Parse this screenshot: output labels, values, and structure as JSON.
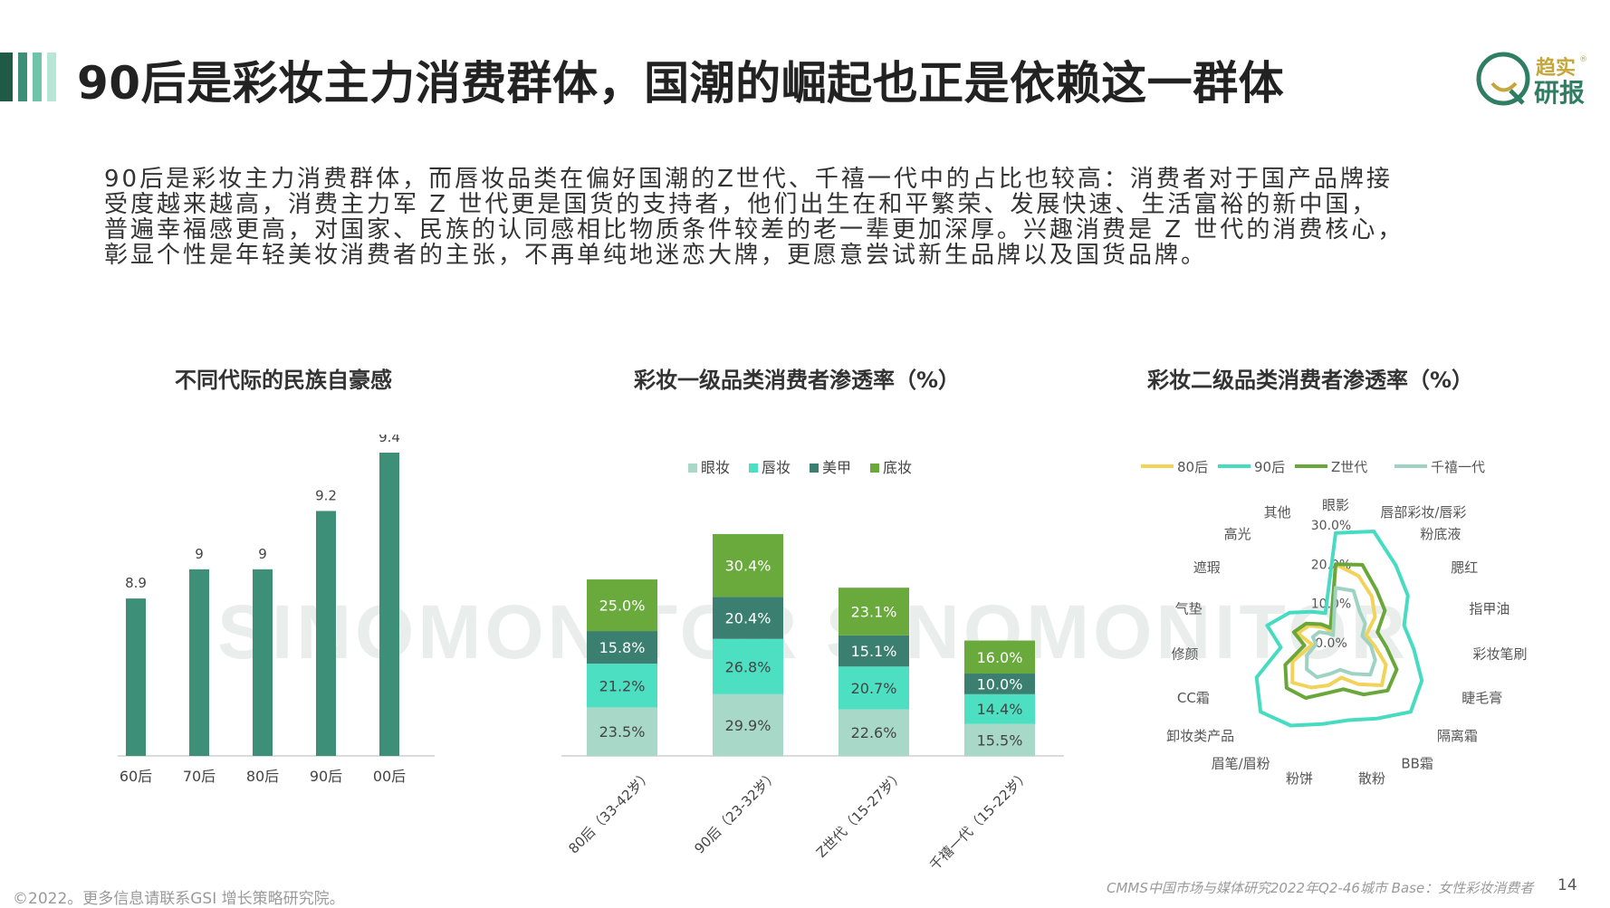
{
  "page_title": "90后是彩妆主力消费群体，国潮的崛起也正是依赖这一群体",
  "brand": {
    "line1": "趋实",
    "line2": "研报",
    "mark": "®"
  },
  "body_lines": [
    "90后是彩妆主力消费群体，而唇妆品类在偏好国潮的Z世代、千禧一代中的占比也较高：消费者对于国产品牌接",
    "受度越来越高，消费主力军 Z 世代更是国货的支持者，他们出生在和平繁荣、发展快速、生活富裕的新中国，",
    "普遍幸福感更高，对国家、民族的认同感相比物质条件较差的老一辈更加深厚。兴趣消费是 Z 世代的消费核心，",
    "彰显个性是年轻美妆消费者的主张，不再单纯地迷恋大牌，更愿意尝试新生品牌以及国货品牌。"
  ],
  "watermark": "SINOMONITOR SINOMONITOR",
  "colors": {
    "bar_green": "#3d8f78",
    "eye": "#a8d8c8",
    "lip": "#4ddfc2",
    "nail": "#3a7f6f",
    "base": "#6aaa3d",
    "s80": "#f1d35a",
    "s90": "#47dcc1",
    "sz": "#6aa73b",
    "s00": "#9ed3c4"
  },
  "chart_data": [
    {
      "type": "bar",
      "title": "不同代际的民族自豪感",
      "categories": [
        "60后",
        "70后",
        "80后",
        "90后",
        "00后"
      ],
      "values": [
        8.9,
        9,
        9,
        9.2,
        9.4
      ],
      "value_labels": [
        "8.9",
        "9",
        "9",
        "9.2",
        "9.4"
      ]
    },
    {
      "type": "bar",
      "stacked": true,
      "title": "彩妆一级品类消费者渗透率（%）",
      "legend": [
        "眼妆",
        "唇妆",
        "美甲",
        "底妆"
      ],
      "categories": [
        "80后（33-42岁）",
        "90后（23-32岁）",
        "Z世代（15-27岁）",
        "千禧一代（15-22岁）"
      ],
      "series": [
        {
          "name": "眼妆",
          "values": [
            23.5,
            29.9,
            22.6,
            15.5
          ]
        },
        {
          "name": "唇妆",
          "values": [
            21.2,
            26.8,
            20.7,
            14.4
          ]
        },
        {
          "name": "美甲",
          "values": [
            15.8,
            20.4,
            15.1,
            10.0
          ]
        },
        {
          "name": "底妆",
          "values": [
            25.0,
            30.4,
            23.1,
            16.0
          ]
        }
      ]
    },
    {
      "type": "radar",
      "title": "彩妆二级品类消费者渗透率（%）",
      "legend": [
        "80后",
        "90后",
        "Z世代",
        "千禧一代"
      ],
      "axes": [
        "眼影",
        "唇部彩妆/唇彩",
        "粉底液",
        "腮红",
        "指甲油",
        "彩妆笔刷",
        "睫毛膏",
        "隔离霜",
        "BB霜",
        "散粉",
        "粉饼",
        "眉笔/眉粉",
        "卸妆类产品",
        "CC霜",
        "修颜",
        "气垫",
        "遮瑕",
        "高光",
        "其他"
      ],
      "ticks": [
        "0.0%",
        "10.0%",
        "20.0%",
        "30.0%"
      ],
      "series": [
        {
          "name": "80后",
          "values": [
            20,
            18,
            15,
            12,
            8,
            10,
            14,
            16,
            12,
            9,
            11,
            13,
            15,
            12,
            6,
            10,
            8,
            5,
            3
          ]
        },
        {
          "name": "90后",
          "values": [
            28,
            30,
            25,
            22,
            18,
            20,
            24,
            26,
            22,
            20,
            21,
            24,
            26,
            22,
            14,
            18,
            14,
            10,
            8
          ]
        },
        {
          "name": "Z世代",
          "values": [
            20,
            21,
            17,
            15,
            11,
            13,
            17,
            18,
            15,
            12,
            13,
            16,
            17,
            14,
            8,
            11,
            9,
            6,
            4
          ]
        },
        {
          "name": "千禧一代",
          "values": [
            14,
            14,
            10,
            9,
            7,
            9,
            11,
            12,
            9,
            7,
            8,
            10,
            10,
            8,
            5,
            6,
            5,
            3,
            2
          ]
        }
      ],
      "rmax": 30
    }
  ],
  "footer": {
    "left": "©2022。更多信息请联系GSI 增长策略研究院。",
    "source": "CMMS中国市场与媒体研究2022年Q2-46城市 Base：女性彩妆消费者",
    "page": "14"
  }
}
